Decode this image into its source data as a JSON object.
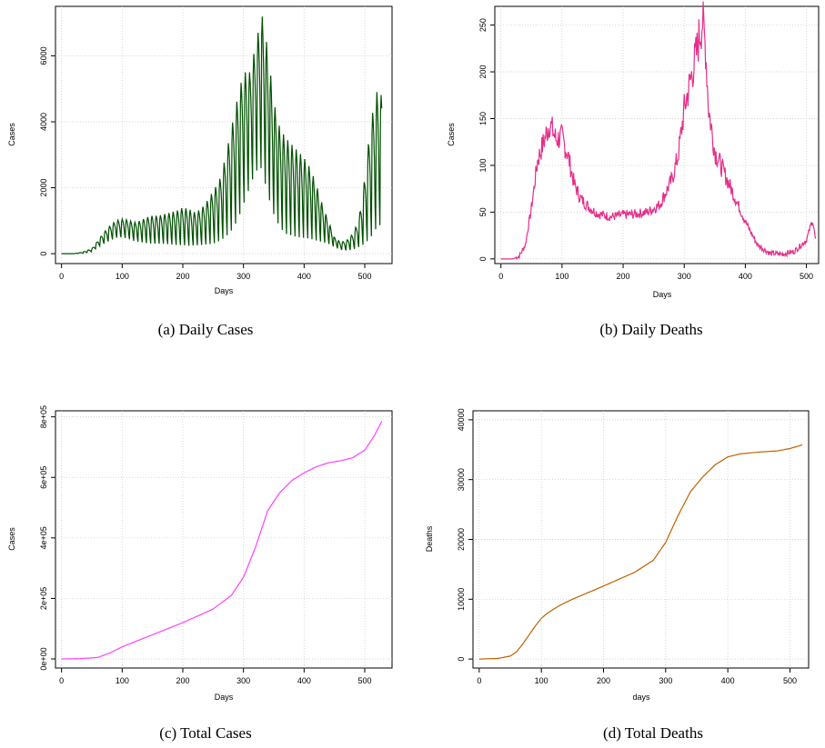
{
  "chart_data": [
    {
      "id": "daily_cases",
      "type": "line",
      "caption": "(a)  Daily Cases",
      "xlabel": "Days",
      "ylabel": "Cases",
      "xlim": [
        -10,
        545
      ],
      "ylim": [
        -300,
        7500
      ],
      "xticks": [
        "0",
        "100",
        "200",
        "300",
        "400",
        "500"
      ],
      "yticks": [
        "0",
        "2000",
        "4000",
        "6000"
      ],
      "grid": true,
      "color": "#005000",
      "series": [
        {
          "x": [
            0,
            20,
            35,
            50,
            60,
            70,
            80,
            90,
            100,
            110,
            120,
            130,
            140,
            150,
            160,
            170,
            180,
            190,
            200,
            210,
            220,
            230,
            240,
            250,
            260,
            270,
            280,
            290,
            300,
            310,
            320,
            330,
            340,
            350,
            360,
            370,
            380,
            390,
            400,
            410,
            420,
            430,
            440,
            450,
            460,
            470,
            480,
            490,
            500,
            510,
            520,
            528
          ],
          "lo": [
            0,
            0,
            10,
            60,
            200,
            300,
            400,
            480,
            500,
            450,
            380,
            350,
            320,
            300,
            300,
            300,
            280,
            260,
            260,
            240,
            250,
            260,
            280,
            300,
            380,
            500,
            700,
            1000,
            1500,
            2000,
            2500,
            2600,
            1800,
            1200,
            800,
            600,
            550,
            500,
            480,
            450,
            400,
            350,
            300,
            200,
            120,
            100,
            120,
            200,
            300,
            500,
            800,
            900
          ],
          "hi": [
            0,
            0,
            50,
            150,
            400,
            650,
            850,
            1000,
            1050,
            1020,
            950,
            1000,
            1100,
            1150,
            1150,
            1200,
            1250,
            1300,
            1400,
            1350,
            1250,
            1350,
            1600,
            1900,
            2200,
            2900,
            3800,
            4700,
            5500,
            5500,
            6300,
            7300,
            6200,
            4600,
            3800,
            3500,
            3300,
            3100,
            2900,
            2600,
            2100,
            1500,
            1000,
            500,
            350,
            400,
            600,
            1000,
            2300,
            4000,
            4900,
            4800
          ]
        }
      ]
    },
    {
      "id": "daily_deaths",
      "type": "line",
      "caption": "(b)  Daily Deaths",
      "xlabel": "Days",
      "ylabel": "Cases",
      "xlim": [
        -10,
        520
      ],
      "ylim": [
        -5,
        270
      ],
      "xticks": [
        "0",
        "100",
        "200",
        "300",
        "400",
        "500"
      ],
      "yticks": [
        "0",
        "50",
        "100",
        "150",
        "200",
        "250"
      ],
      "grid": true,
      "color": "#e62e8a",
      "series": [
        {
          "x": [
            0,
            20,
            30,
            40,
            50,
            60,
            70,
            80,
            90,
            100,
            110,
            120,
            130,
            140,
            150,
            160,
            180,
            200,
            220,
            240,
            260,
            280,
            290,
            300,
            310,
            320,
            325,
            330,
            335,
            340,
            350,
            360,
            380,
            400,
            420,
            440,
            460,
            480,
            500,
            510,
            515
          ],
          "y": [
            0,
            0,
            3,
            15,
            55,
            105,
            125,
            145,
            128,
            130,
            110,
            80,
            65,
            58,
            52,
            48,
            45,
            47,
            48,
            50,
            58,
            85,
            110,
            160,
            190,
            220,
            240,
            255,
            225,
            160,
            115,
            100,
            70,
            40,
            15,
            6,
            5,
            8,
            20,
            42,
            20
          ]
        }
      ]
    },
    {
      "id": "total_cases",
      "type": "line",
      "caption": "(c)  Total Cases",
      "xlabel": "Days",
      "ylabel": "Cases",
      "xlim": [
        -10,
        545
      ],
      "ylim": [
        -30000,
        820000
      ],
      "xticks": [
        "0",
        "100",
        "200",
        "300",
        "400",
        "500"
      ],
      "yticks": [
        "0e+00",
        "2e+05",
        "4e+05",
        "6e+05",
        "8e+05"
      ],
      "grid": true,
      "color": "#ff40ff",
      "series": [
        {
          "x": [
            0,
            30,
            60,
            80,
            100,
            150,
            200,
            250,
            280,
            300,
            320,
            340,
            360,
            380,
            400,
            420,
            440,
            460,
            480,
            500,
            515,
            528
          ],
          "y": [
            0,
            1000,
            5000,
            20000,
            40000,
            80000,
            120000,
            165000,
            210000,
            270000,
            370000,
            490000,
            550000,
            590000,
            615000,
            635000,
            648000,
            655000,
            665000,
            690000,
            735000,
            785000
          ]
        }
      ]
    },
    {
      "id": "total_deaths",
      "type": "line",
      "caption": "(d)  Total Deaths",
      "xlabel": "days",
      "ylabel": "Deaths",
      "xlim": [
        -10,
        530
      ],
      "ylim": [
        -1500,
        41500
      ],
      "xticks": [
        "0",
        "100",
        "200",
        "300",
        "400",
        "500"
      ],
      "yticks": [
        "0",
        "10000",
        "20000",
        "30000",
        "40000"
      ],
      "grid": true,
      "color": "#c06000",
      "series": [
        {
          "x": [
            0,
            30,
            50,
            60,
            70,
            80,
            90,
            100,
            110,
            130,
            150,
            200,
            250,
            280,
            300,
            320,
            340,
            360,
            380,
            400,
            420,
            450,
            480,
            500,
            520
          ],
          "y": [
            0,
            100,
            500,
            1200,
            2500,
            4000,
            5500,
            6800,
            7700,
            9000,
            10000,
            12200,
            14500,
            16500,
            19500,
            24000,
            28000,
            30500,
            32500,
            33800,
            34300,
            34600,
            34800,
            35200,
            35800
          ]
        }
      ]
    }
  ]
}
